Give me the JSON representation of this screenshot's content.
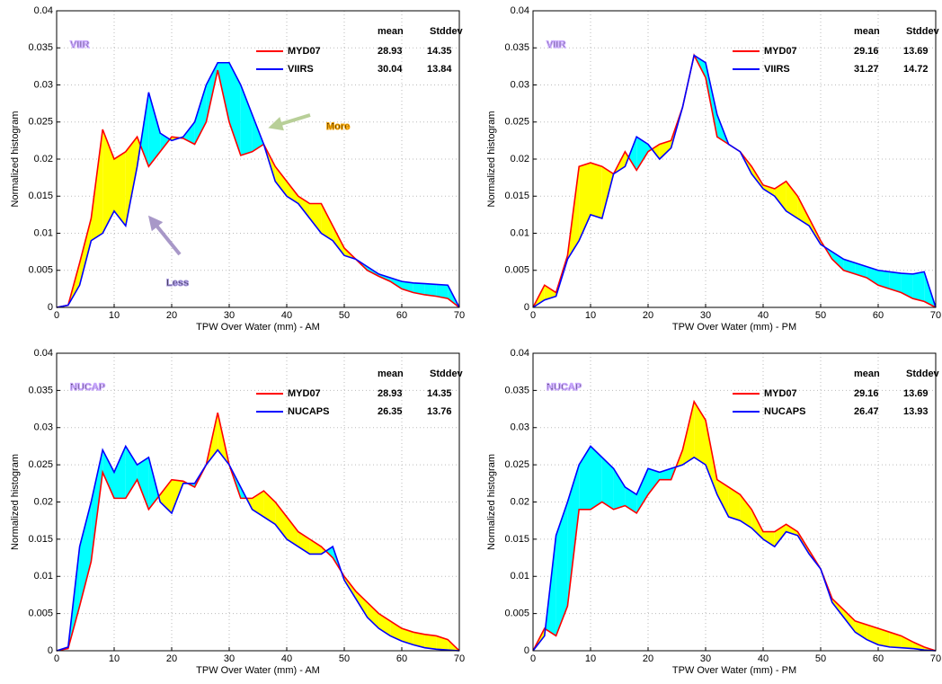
{
  "chart_data": [
    {
      "type": "line",
      "title": "VIIR",
      "title_color": "#3a1fc8",
      "xlabel": "TPW Over Water (mm) - AM",
      "ylabel": "Normalized histogram",
      "x": [
        0,
        2,
        4,
        6,
        8,
        10,
        12,
        14,
        16,
        18,
        20,
        22,
        24,
        26,
        28,
        30,
        32,
        34,
        36,
        38,
        40,
        42,
        44,
        46,
        48,
        50,
        52,
        54,
        56,
        58,
        60,
        62,
        64,
        66,
        68,
        70
      ],
      "series": [
        {
          "name": "MYD07",
          "color": "#ff0000",
          "mean": 28.93,
          "stddev": 14.35,
          "values": [
            0,
            0.0003,
            0.006,
            0.012,
            0.024,
            0.02,
            0.021,
            0.023,
            0.019,
            0.021,
            0.023,
            0.0228,
            0.022,
            0.025,
            0.032,
            0.025,
            0.0205,
            0.021,
            0.022,
            0.019,
            0.017,
            0.015,
            0.014,
            0.014,
            0.011,
            0.008,
            0.0065,
            0.005,
            0.0042,
            0.0035,
            0.0025,
            0.002,
            0.0017,
            0.0015,
            0.0012,
            0
          ]
        },
        {
          "name": "VIIRS",
          "color": "#0000ff",
          "mean": 30.04,
          "stddev": 13.84,
          "values": [
            0,
            0.0003,
            0.003,
            0.009,
            0.01,
            0.013,
            0.011,
            0.019,
            0.029,
            0.0235,
            0.0225,
            0.023,
            0.025,
            0.03,
            0.033,
            0.033,
            0.03,
            0.026,
            0.022,
            0.017,
            0.015,
            0.014,
            0.012,
            0.01,
            0.009,
            0.007,
            0.0065,
            0.0055,
            0.0045,
            0.004,
            0.0035,
            0.0033,
            0.0032,
            0.0031,
            0.003,
            0
          ]
        }
      ],
      "stats_header": [
        "mean",
        "Stddev"
      ],
      "fill_colors": [
        "#ffff00",
        "#00ffff"
      ],
      "annotations": [
        "More",
        "Less"
      ],
      "xlim": [
        0,
        70
      ],
      "ylim": [
        0,
        0.04
      ],
      "xticks": [
        0,
        10,
        20,
        30,
        40,
        50,
        60,
        70
      ],
      "yticks": [
        0,
        0.005,
        0.01,
        0.015,
        0.02,
        0.025,
        0.03,
        0.035,
        0.04
      ],
      "grid": true
    },
    {
      "type": "line",
      "title": "VIIR",
      "title_color": "#3a1fc8",
      "xlabel": "TPW Over Water (mm) - PM",
      "ylabel": "Normalized histogram",
      "x": [
        0,
        2,
        4,
        6,
        8,
        10,
        12,
        14,
        16,
        18,
        20,
        22,
        24,
        26,
        28,
        30,
        32,
        34,
        36,
        38,
        40,
        42,
        44,
        46,
        48,
        50,
        52,
        54,
        56,
        58,
        60,
        62,
        64,
        66,
        68,
        70
      ],
      "series": [
        {
          "name": "MYD07",
          "color": "#ff0000",
          "mean": 29.16,
          "stddev": 13.69,
          "values": [
            0,
            0.003,
            0.002,
            0.007,
            0.019,
            0.0195,
            0.019,
            0.018,
            0.021,
            0.0185,
            0.021,
            0.022,
            0.0225,
            0.027,
            0.034,
            0.031,
            0.023,
            0.022,
            0.021,
            0.019,
            0.0165,
            0.016,
            0.017,
            0.015,
            0.012,
            0.009,
            0.0065,
            0.005,
            0.0045,
            0.004,
            0.003,
            0.0025,
            0.002,
            0.0012,
            0.0008,
            0
          ]
        },
        {
          "name": "VIIRS",
          "color": "#0000ff",
          "mean": 31.27,
          "stddev": 14.72,
          "values": [
            0,
            0.001,
            0.0015,
            0.0065,
            0.009,
            0.0125,
            0.012,
            0.018,
            0.019,
            0.023,
            0.022,
            0.02,
            0.0215,
            0.027,
            0.034,
            0.033,
            0.026,
            0.022,
            0.021,
            0.018,
            0.016,
            0.015,
            0.013,
            0.012,
            0.011,
            0.0085,
            0.0075,
            0.0065,
            0.006,
            0.0055,
            0.005,
            0.0048,
            0.0046,
            0.0045,
            0.0048,
            0
          ]
        }
      ],
      "stats_header": [
        "mean",
        "Stddev"
      ],
      "fill_colors": [
        "#ffff00",
        "#00ffff"
      ],
      "xlim": [
        0,
        70
      ],
      "ylim": [
        0,
        0.04
      ],
      "xticks": [
        0,
        10,
        20,
        30,
        40,
        50,
        60,
        70
      ],
      "yticks": [
        0,
        0.005,
        0.01,
        0.015,
        0.02,
        0.025,
        0.03,
        0.035,
        0.04
      ],
      "grid": true
    },
    {
      "type": "line",
      "title": "NUCAP",
      "title_color": "#3a1fc8",
      "xlabel": "TPW Over Water (mm) - AM",
      "ylabel": "Normalized histogram",
      "x": [
        0,
        2,
        4,
        6,
        8,
        10,
        12,
        14,
        16,
        18,
        20,
        22,
        24,
        26,
        28,
        30,
        32,
        34,
        36,
        38,
        40,
        42,
        44,
        46,
        48,
        50,
        52,
        54,
        56,
        58,
        60,
        62,
        64,
        66,
        68,
        70
      ],
      "series": [
        {
          "name": "MYD07",
          "color": "#ff0000",
          "mean": 28.93,
          "stddev": 14.35,
          "values": [
            0,
            0.0003,
            0.006,
            0.012,
            0.024,
            0.0205,
            0.0205,
            0.023,
            0.019,
            0.021,
            0.023,
            0.0228,
            0.022,
            0.025,
            0.032,
            0.025,
            0.0205,
            0.0205,
            0.0215,
            0.02,
            0.018,
            0.016,
            0.015,
            0.014,
            0.0125,
            0.01,
            0.008,
            0.0065,
            0.005,
            0.004,
            0.003,
            0.0025,
            0.0022,
            0.002,
            0.0015,
            0
          ]
        },
        {
          "name": "NUCAPS",
          "color": "#0000ff",
          "mean": 26.35,
          "stddev": 13.76,
          "values": [
            0,
            0.0005,
            0.014,
            0.02,
            0.027,
            0.024,
            0.0275,
            0.025,
            0.026,
            0.02,
            0.0185,
            0.0225,
            0.0225,
            0.025,
            0.027,
            0.025,
            0.022,
            0.019,
            0.018,
            0.017,
            0.015,
            0.014,
            0.013,
            0.013,
            0.014,
            0.0095,
            0.007,
            0.0045,
            0.003,
            0.002,
            0.0013,
            0.0008,
            0.0004,
            0.0002,
            0.0001,
            0
          ]
        }
      ],
      "stats_header": [
        "mean",
        "Stddev"
      ],
      "fill_colors": [
        "#ffff00",
        "#00ffff"
      ],
      "xlim": [
        0,
        70
      ],
      "ylim": [
        0,
        0.04
      ],
      "xticks": [
        0,
        10,
        20,
        30,
        40,
        50,
        60,
        70
      ],
      "yticks": [
        0,
        0.005,
        0.01,
        0.015,
        0.02,
        0.025,
        0.03,
        0.035,
        0.04
      ],
      "grid": true
    },
    {
      "type": "line",
      "title": "NUCAP",
      "title_color": "#3a1fc8",
      "xlabel": "TPW Over Water (mm) - PM",
      "ylabel": "Normalized histogram",
      "x": [
        0,
        2,
        4,
        6,
        8,
        10,
        12,
        14,
        16,
        18,
        20,
        22,
        24,
        26,
        28,
        30,
        32,
        34,
        36,
        38,
        40,
        42,
        44,
        46,
        48,
        50,
        52,
        54,
        56,
        58,
        60,
        62,
        64,
        66,
        68,
        70
      ],
      "series": [
        {
          "name": "MYD07",
          "color": "#ff0000",
          "mean": 29.16,
          "stddev": 13.69,
          "values": [
            0,
            0.003,
            0.002,
            0.006,
            0.019,
            0.019,
            0.02,
            0.019,
            0.0195,
            0.0185,
            0.021,
            0.023,
            0.023,
            0.027,
            0.0335,
            0.031,
            0.023,
            0.022,
            0.021,
            0.019,
            0.016,
            0.016,
            0.017,
            0.016,
            0.0135,
            0.011,
            0.007,
            0.0055,
            0.004,
            0.0035,
            0.003,
            0.0025,
            0.002,
            0.0012,
            0.0005,
            0
          ]
        },
        {
          "name": "NUCAPS",
          "color": "#0000ff",
          "mean": 26.47,
          "stddev": 13.93,
          "values": [
            0,
            0.002,
            0.0155,
            0.02,
            0.025,
            0.0275,
            0.026,
            0.0245,
            0.022,
            0.021,
            0.0245,
            0.024,
            0.0245,
            0.025,
            0.026,
            0.025,
            0.021,
            0.018,
            0.0175,
            0.0165,
            0.015,
            0.014,
            0.016,
            0.0155,
            0.013,
            0.011,
            0.0065,
            0.0045,
            0.0025,
            0.0015,
            0.0008,
            0.0005,
            0.0004,
            0.0003,
            0.0001,
            0
          ]
        }
      ],
      "stats_header": [
        "mean",
        "Stddev"
      ],
      "fill_colors": [
        "#ffff00",
        "#00ffff"
      ],
      "xlim": [
        0,
        70
      ],
      "ylim": [
        0,
        0.04
      ],
      "xticks": [
        0,
        10,
        20,
        30,
        40,
        50,
        60,
        70
      ],
      "yticks": [
        0,
        0.005,
        0.01,
        0.015,
        0.02,
        0.025,
        0.03,
        0.035,
        0.04
      ],
      "grid": true
    }
  ]
}
